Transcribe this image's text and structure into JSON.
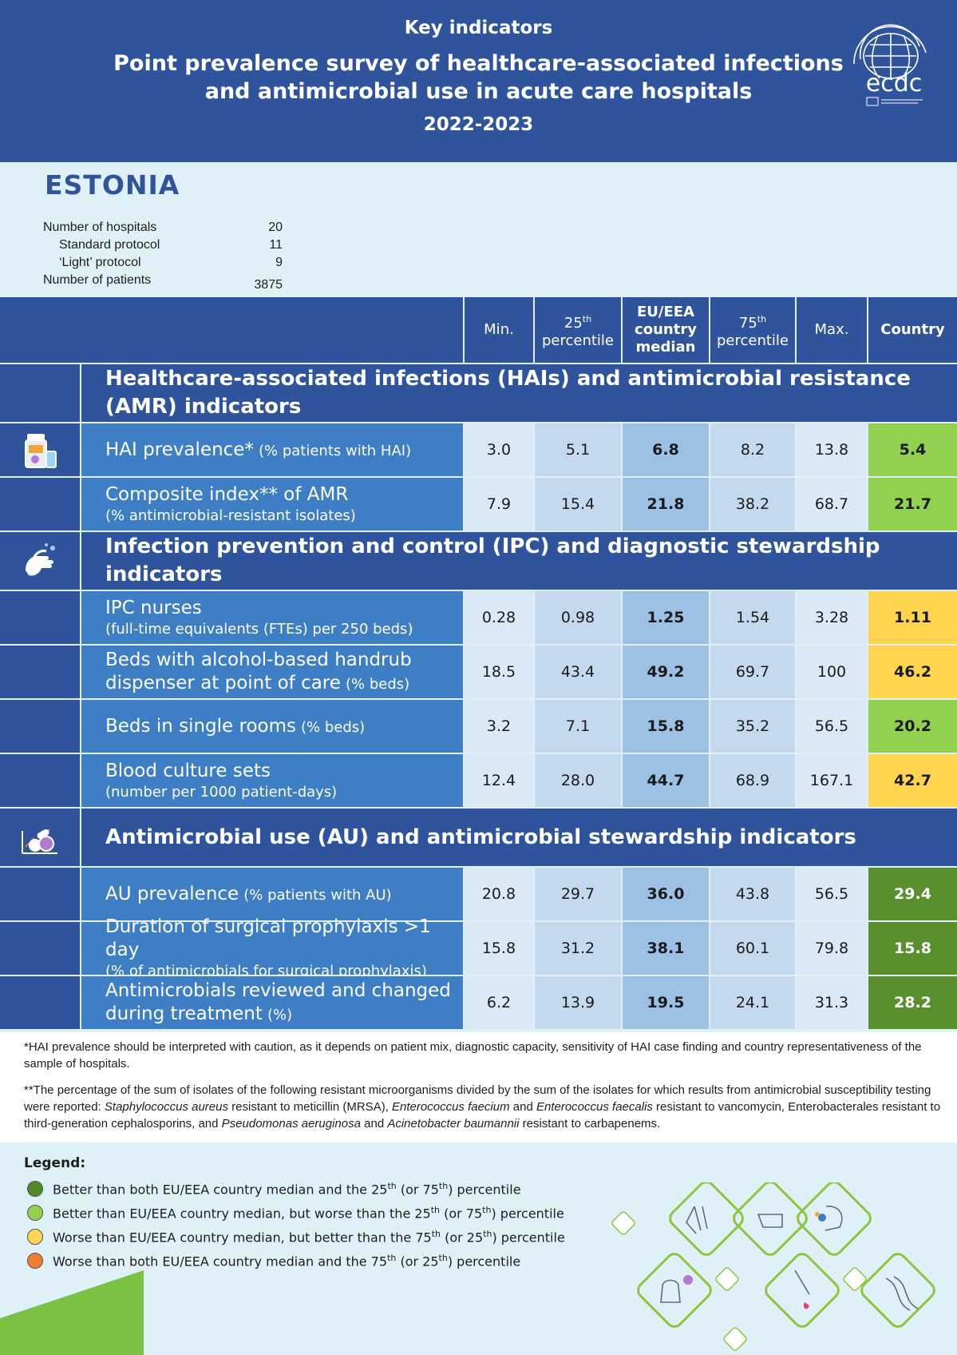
{
  "header": {
    "kicker": "Key indicators",
    "title_line1": "Point prevalence survey of healthcare-associated infections",
    "title_line2": "and antimicrobial use in acute care hospitals",
    "years": "2022-2023",
    "logo_text": "ecdc"
  },
  "country": {
    "name": "ESTONIA",
    "stats": [
      {
        "label": "Number of hospitals",
        "value": "20"
      },
      {
        "label": "Standard protocol",
        "value": "11"
      },
      {
        "label": "‘Light’ protocol",
        "value": "9"
      },
      {
        "label": "Number of patients",
        "value": "3875"
      }
    ]
  },
  "table": {
    "columns": {
      "min": "Min.",
      "p25_num": "25",
      "p25_sup": "th",
      "p25_word": "percentile",
      "median": "EU/EEA country median",
      "p75_num": "75",
      "p75_sup": "th",
      "p75_word": "percentile",
      "max": "Max.",
      "country": "Country"
    },
    "sections": [
      {
        "title": "Healthcare-associated infections (HAIs) and antimicrobial resistance (AMR) indicators",
        "icon": "medicine-bottle-icon",
        "rows": [
          {
            "label": "HAI prevalence*",
            "sub": "(% patients with HAI)",
            "inline": true,
            "min": "3.0",
            "p25": "5.1",
            "median": "6.8",
            "p75": "8.2",
            "max": "13.8",
            "country": "5.4",
            "color": "#92d050"
          },
          {
            "label": "Composite index** of AMR",
            "sub": "(% antimicrobial-resistant isolates)",
            "inline": false,
            "min": "7.9",
            "p25": "15.4",
            "median": "21.8",
            "p75": "38.2",
            "max": "68.7",
            "country": "21.7",
            "color": "#92d050"
          }
        ]
      },
      {
        "title": "Infection prevention and control (IPC) and diagnostic stewardship indicators",
        "icon": "handwash-icon",
        "rows": [
          {
            "label": "IPC nurses",
            "sub": "(full-time equivalents (FTEs) per 250 beds)",
            "inline": false,
            "min": "0.28",
            "p25": "0.98",
            "median": "1.25",
            "p75": "1.54",
            "max": "3.28",
            "country": "1.11",
            "color": "#ffd44f"
          },
          {
            "label": "Beds with alcohol-based handrub",
            "label2": "dispenser at point of care",
            "sub": "(% beds)",
            "inline": false,
            "min": "18.5",
            "p25": "43.4",
            "median": "49.2",
            "p75": "69.7",
            "max": "100",
            "country": "46.2",
            "color": "#ffd44f"
          },
          {
            "label": "Beds in single rooms",
            "sub": "(% beds)",
            "inline": true,
            "min": "3.2",
            "p25": "7.1",
            "median": "15.8",
            "p75": "35.2",
            "max": "56.5",
            "country": "20.2",
            "color": "#92d050"
          },
          {
            "label": "Blood culture sets",
            "sub": "(number per 1000 patient-days)",
            "inline": false,
            "min": "12.4",
            "p25": "28.0",
            "median": "44.7",
            "p75": "68.9",
            "max": "167.1",
            "country": "42.7",
            "color": "#ffd44f"
          }
        ]
      },
      {
        "title": "Antimicrobial use (AU) and antimicrobial stewardship indicators",
        "icon": "pills-icon",
        "rows": [
          {
            "label": "AU prevalence",
            "sub": "(% patients with AU)",
            "inline": true,
            "min": "20.8",
            "p25": "29.7",
            "median": "36.0",
            "p75": "43.8",
            "max": "56.5",
            "country": "29.4",
            "color": "#5a8f2e"
          },
          {
            "label": "Duration of surgical prophylaxis >1 day",
            "sub": "(% of antimicrobials for surgical prophylaxis)",
            "inline": false,
            "min": "15.8",
            "p25": "31.2",
            "median": "38.1",
            "p75": "60.1",
            "max": "79.8",
            "country": "15.8",
            "color": "#5a8f2e"
          },
          {
            "label": "Antimicrobials reviewed and changed",
            "label2": "during treatment",
            "sub": "(%)",
            "inline": false,
            "min": "6.2",
            "p25": "13.9",
            "median": "19.5",
            "p75": "24.1",
            "max": "31.3",
            "country": "28.2",
            "color": "#5a8f2e"
          }
        ]
      }
    ]
  },
  "notes": {
    "note1": "*HAI prevalence should be interpreted with caution, as it depends on patient mix, diagnostic capacity, sensitivity of HAI case finding and country representativeness of the sample of hospitals.",
    "note2_a": "**The percentage of the sum of isolates of the following resistant microorganisms divided by the sum of the isolates for which results from antimicrobial susceptibility testing were reported: ",
    "note2_b": "Staphylococcus aureus",
    "note2_c": " resistant to meticillin (MRSA), ",
    "note2_d": "Enterococcus faecium",
    "note2_e": " and ",
    "note2_f": "Enterococcus faecalis",
    "note2_g": " resistant to vancomycin, Enterobacterales resistant to third-generation cephalosporins, and ",
    "note2_h": "Pseudomonas aeruginosa",
    "note2_i": " and ",
    "note2_j": "Acinetobacter baumannii",
    "note2_k": " resistant to carbapenems."
  },
  "legend": {
    "title": "Legend:",
    "items": [
      {
        "text_a": "Better than both EU/EEA country median and the 25",
        "sup1": "th",
        "text_b": " (or 75",
        "sup2": "th",
        "text_c": ") percentile",
        "color": "#4e8a2a"
      },
      {
        "text_a": "Better than EU/EEA country median, but worse than the 25",
        "sup1": "th",
        "text_b": " (or 75",
        "sup2": "th",
        "text_c": ") percentile",
        "color": "#92d050"
      },
      {
        "text_a": "Worse than EU/EEA country median, but better than the 75",
        "sup1": "th",
        "text_b": " (or 25",
        "sup2": "th",
        "text_c": ") percentile",
        "color": "#ffd44f"
      },
      {
        "text_a": "Worse than both EU/EEA country median and the 75",
        "sup1": "th",
        "text_b": " (or 25",
        "sup2": "th",
        "text_c": ") percentile",
        "color": "#ed7d31"
      }
    ]
  }
}
